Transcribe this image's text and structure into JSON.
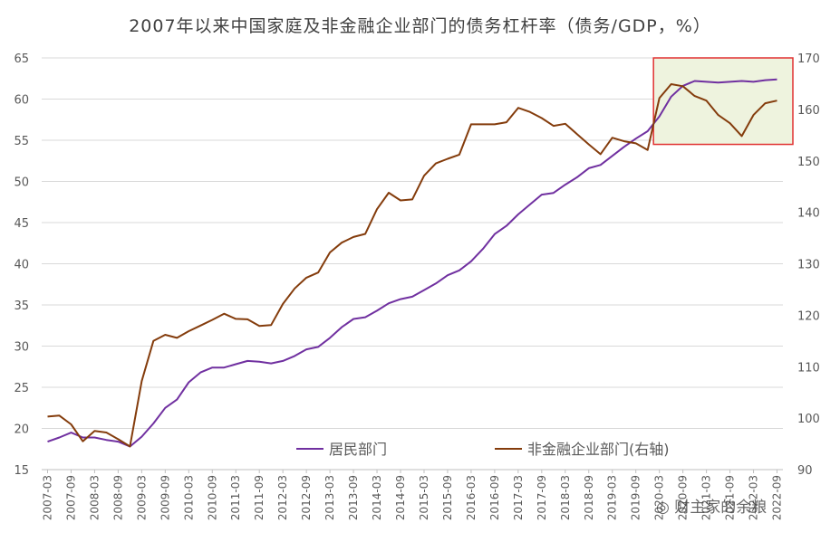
{
  "chart_data": {
    "type": "line",
    "title": "2007年以来中国家庭及非金融企业部门的债务杠杆率（债务/GDP，%）",
    "categories": [
      "2007-03",
      "2007-06",
      "2007-09",
      "2007-12",
      "2008-03",
      "2008-06",
      "2008-09",
      "2008-12",
      "2009-03",
      "2009-06",
      "2009-09",
      "2009-12",
      "2010-03",
      "2010-06",
      "2010-09",
      "2010-12",
      "2011-03",
      "2011-06",
      "2011-09",
      "2011-12",
      "2012-03",
      "2012-06",
      "2012-09",
      "2012-12",
      "2013-03",
      "2013-06",
      "2013-09",
      "2013-12",
      "2014-03",
      "2014-06",
      "2014-09",
      "2014-12",
      "2015-03",
      "2015-06",
      "2015-09",
      "2015-12",
      "2016-03",
      "2016-06",
      "2016-09",
      "2016-12",
      "2017-03",
      "2017-06",
      "2017-09",
      "2017-12",
      "2018-03",
      "2018-06",
      "2018-09",
      "2018-12",
      "2019-03",
      "2019-06",
      "2019-09",
      "2019-12",
      "2020-03",
      "2020-06",
      "2020-09",
      "2020-12",
      "2021-03",
      "2021-06",
      "2021-09",
      "2021-12",
      "2022-03",
      "2022-06",
      "2022-09"
    ],
    "x_tick_labels": [
      "2007-03",
      "2007-09",
      "2008-03",
      "2008-09",
      "2009-03",
      "2009-09",
      "2010-03",
      "2010-09",
      "2011-03",
      "2011-09",
      "2012-03",
      "2012-09",
      "2013-03",
      "2013-09",
      "2014-03",
      "2014-09",
      "2015-03",
      "2015-09",
      "2016-03",
      "2016-09",
      "2017-03",
      "2017-09",
      "2018-03",
      "2018-09",
      "2019-03",
      "2019-09",
      "2020-03",
      "2020-09",
      "2021-03",
      "2021-09",
      "2022-03",
      "2022-09"
    ],
    "series": [
      {
        "name": "居民部门",
        "axis": "left",
        "color": "#7030A0",
        "values": [
          18.4,
          18.9,
          19.5,
          18.9,
          18.9,
          18.6,
          18.4,
          17.8,
          19.0,
          20.6,
          22.5,
          23.5,
          25.6,
          26.8,
          27.4,
          27.4,
          27.8,
          28.2,
          28.1,
          27.9,
          28.2,
          28.8,
          29.6,
          29.9,
          31.0,
          32.3,
          33.3,
          33.5,
          34.3,
          35.2,
          35.7,
          36.0,
          36.8,
          37.6,
          38.6,
          39.2,
          40.3,
          41.8,
          43.6,
          44.6,
          46.0,
          47.2,
          48.4,
          48.6,
          49.6,
          50.5,
          51.6,
          52.0,
          53.1,
          54.2,
          55.2,
          56.1,
          57.9,
          60.3,
          61.6,
          62.2,
          62.1,
          62.0,
          62.1,
          62.2,
          62.1,
          62.3,
          62.4
        ]
      },
      {
        "name": "非金融企业部门(右轴)",
        "axis": "right",
        "color": "#843C0C",
        "values": [
          100.3,
          100.5,
          98.8,
          95.5,
          97.5,
          97.2,
          95.9,
          94.5,
          107.2,
          115.0,
          116.2,
          115.6,
          116.9,
          118.0,
          119.1,
          120.3,
          119.3,
          119.2,
          117.9,
          118.1,
          122.2,
          125.2,
          127.3,
          128.3,
          132.2,
          134.1,
          135.2,
          135.8,
          140.6,
          143.8,
          142.3,
          142.5,
          147.1,
          149.5,
          150.4,
          151.2,
          157.1,
          157.1,
          157.1,
          157.5,
          160.3,
          159.5,
          158.3,
          156.8,
          157.2,
          155.2,
          153.2,
          151.3,
          154.5,
          153.8,
          153.4,
          152.1,
          162.2,
          164.9,
          164.5,
          162.6,
          161.7,
          158.9,
          157.3,
          154.8,
          158.9,
          161.2,
          161.7
        ]
      }
    ],
    "y_left": {
      "min": 15,
      "max": 65,
      "ticks": [
        15,
        20,
        25,
        30,
        35,
        40,
        45,
        50,
        55,
        60,
        65
      ]
    },
    "y_right": {
      "min": 90,
      "max": 170,
      "ticks": [
        90,
        100,
        110,
        120,
        130,
        140,
        150,
        160,
        170
      ]
    },
    "highlight": {
      "from": "2020-03",
      "to": "2022-09",
      "border_color": "#E03030",
      "fill_color": "#EEF3DE"
    },
    "legend_position": "bottom-center",
    "grid": "horizontal",
    "xlabel": "",
    "ylabel": "",
    "grid_color": "#D9D9D9"
  },
  "watermark": "财主家的余粮"
}
